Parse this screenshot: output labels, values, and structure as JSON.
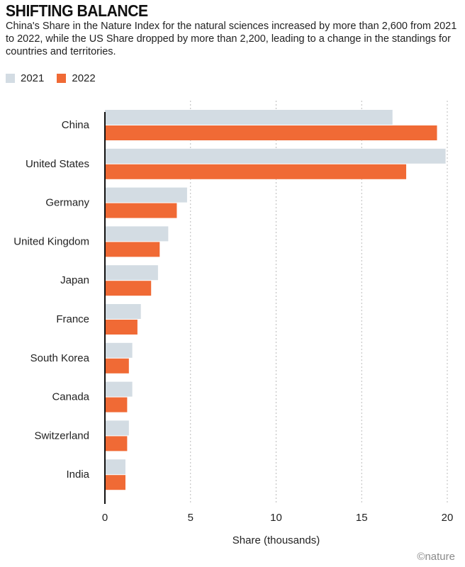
{
  "header": {
    "title": "SHIFTING BALANCE",
    "subtitle": "China's Share in the Nature Index for the natural sciences increased by more than 2,600 from 2021 to 2022, while the US Share dropped by more than 2,200, leading to a change in the standings for countries and territories."
  },
  "credit": "©nature",
  "colors": {
    "s2021": "#d3dce3",
    "s2022": "#f06a35",
    "axis": "#111111",
    "grid": "#bbbbbb"
  },
  "chart_data": {
    "type": "bar",
    "orientation": "horizontal",
    "categories": [
      "China",
      "United States",
      "Germany",
      "United Kingdom",
      "Japan",
      "France",
      "South Korea",
      "Canada",
      "Switzerland",
      "India"
    ],
    "series": [
      {
        "name": "2021",
        "values": [
          16.8,
          19.9,
          4.8,
          3.7,
          3.1,
          2.1,
          1.6,
          1.6,
          1.4,
          1.2
        ]
      },
      {
        "name": "2022",
        "values": [
          19.4,
          17.6,
          4.2,
          3.2,
          2.7,
          1.9,
          1.4,
          1.3,
          1.3,
          1.2
        ]
      }
    ],
    "xlabel": "Share (thousands)",
    "xlim": [
      0,
      20
    ],
    "xticks": [
      0,
      5,
      10,
      15,
      20
    ],
    "grid": "vertical dotted",
    "legend_position": "top-left"
  }
}
